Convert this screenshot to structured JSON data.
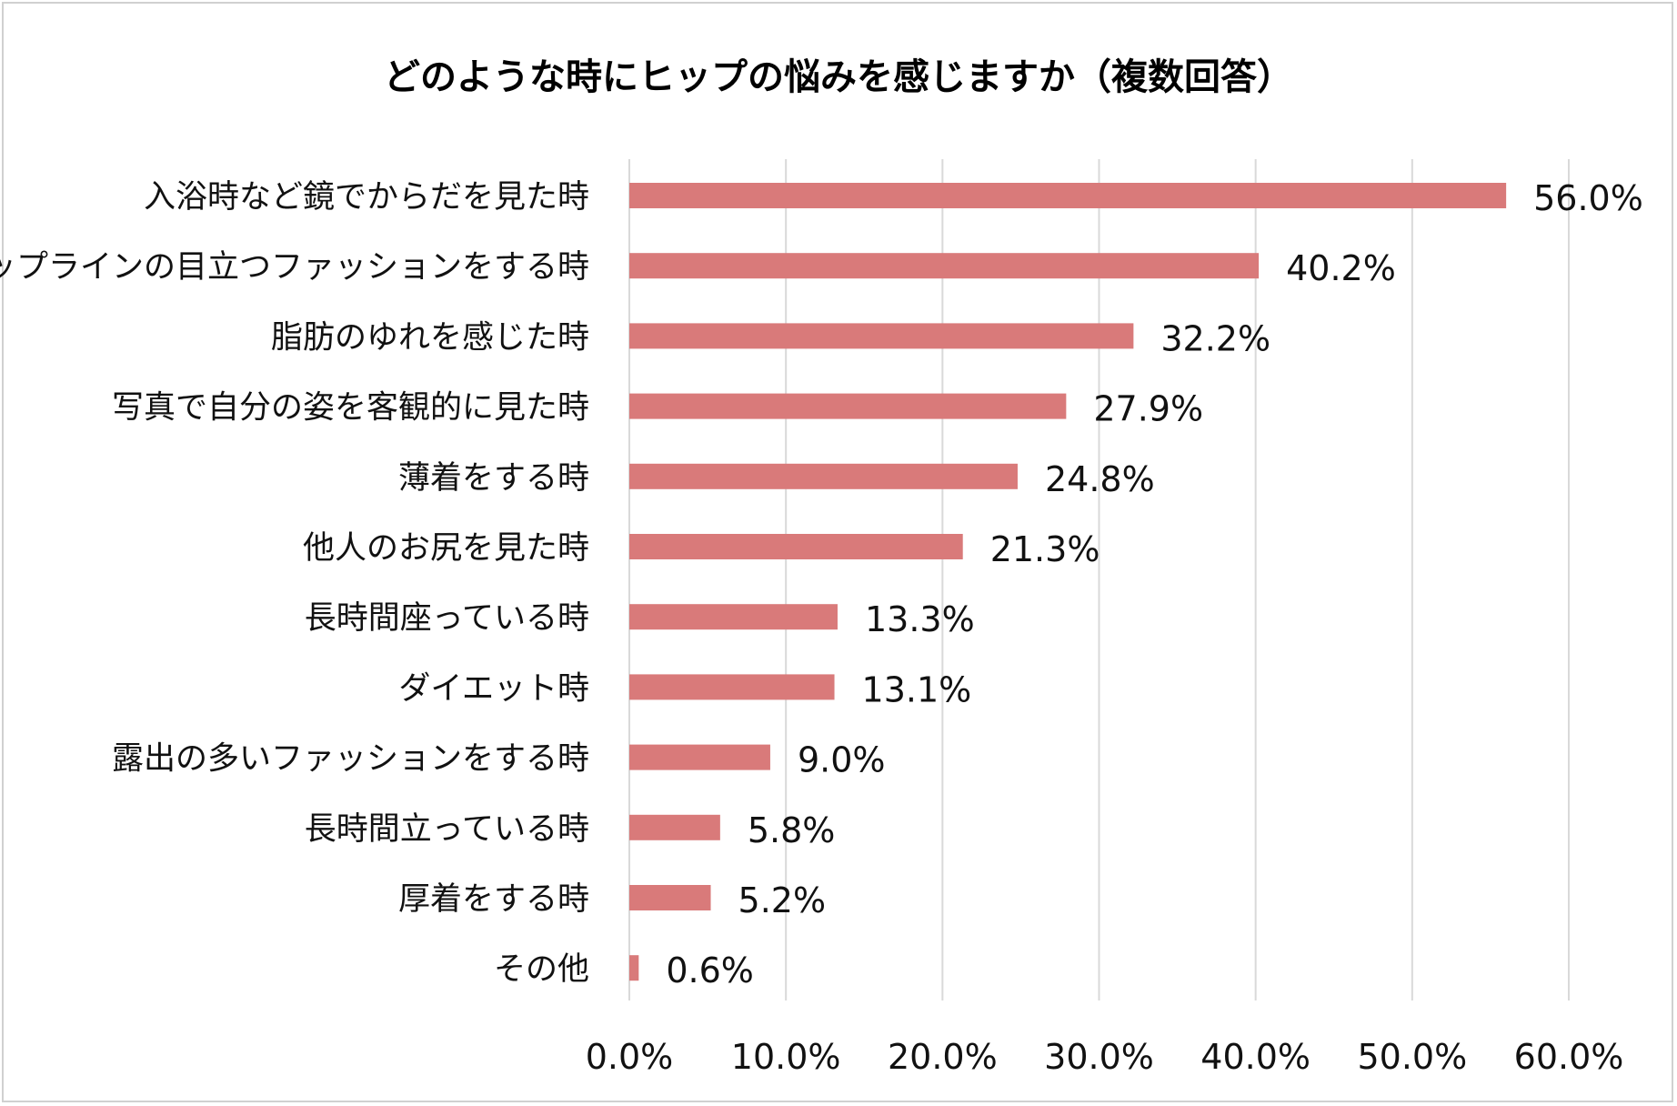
{
  "chart_data": {
    "type": "bar",
    "orientation": "horizontal",
    "title": "どのような時にヒップの悩みを感じますか（複数回答）",
    "categories": [
      "入浴時など鏡でからだを見た時",
      "ヒップラインの目立つファッションをする時",
      "脂肪のゆれを感じた時",
      "写真で自分の姿を客観的に見た時",
      "薄着をする時",
      "他人のお尻を見た時",
      "長時間座っている時",
      "ダイエット時",
      "露出の多いファッションをする時",
      "長時間立っている時",
      "厚着をする時",
      "その他"
    ],
    "values": [
      56.0,
      40.2,
      32.2,
      27.9,
      24.8,
      21.3,
      13.3,
      13.1,
      9.0,
      5.8,
      5.2,
      0.6
    ],
    "data_labels": [
      "56.0%",
      "40.2%",
      "32.2%",
      "27.9%",
      "24.8%",
      "21.3%",
      "13.3%",
      "13.1%",
      "9.0%",
      "5.8%",
      "5.2%",
      "0.6%"
    ],
    "xlim": [
      0,
      60
    ],
    "x_ticks": [
      0,
      10,
      20,
      30,
      40,
      50,
      60
    ],
    "x_tick_labels": [
      "0.0%",
      "10.0%",
      "20.0%",
      "30.0%",
      "40.0%",
      "50.0%",
      "60.0%"
    ],
    "grid": "vertical",
    "legend": "none",
    "bar_color": "#d97a7a",
    "grid_color": "#d9d9d9"
  }
}
